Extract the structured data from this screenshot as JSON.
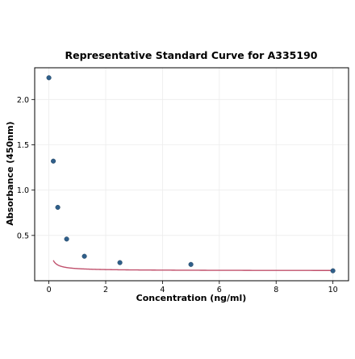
{
  "chart_data": {
    "type": "scatter",
    "title": "Representative Standard Curve for A335190",
    "xlabel": "Concentration (ng/ml)",
    "ylabel": "Absorbance (450nm)",
    "xlim": [
      -0.5,
      10.55
    ],
    "ylim": [
      0.0,
      2.35
    ],
    "xticks": [
      0,
      2,
      4,
      6,
      8,
      10
    ],
    "yticks": [
      0.5,
      1.0,
      1.5,
      2.0
    ],
    "xtick_labels": [
      "0",
      "2",
      "4",
      "6",
      "8",
      "10"
    ],
    "ytick_labels": [
      "0.5",
      "1.0",
      "1.5",
      "2.0"
    ],
    "grid": true,
    "series": [
      {
        "kind": "points",
        "color": "#2f5f8a",
        "x": [
          0,
          0.156,
          0.313,
          0.625,
          1.25,
          2.5,
          5,
          10
        ],
        "y": [
          2.24,
          1.32,
          0.81,
          0.46,
          0.27,
          0.2,
          0.18,
          0.11
        ]
      },
      {
        "kind": "fit-curve",
        "color": "#c0506c",
        "model": "4PL",
        "params": {
          "A": 8.0,
          "B": 0.85,
          "C": 0.0011,
          "D": 0.11
        },
        "x_range": [
          0.156,
          10
        ]
      }
    ]
  }
}
